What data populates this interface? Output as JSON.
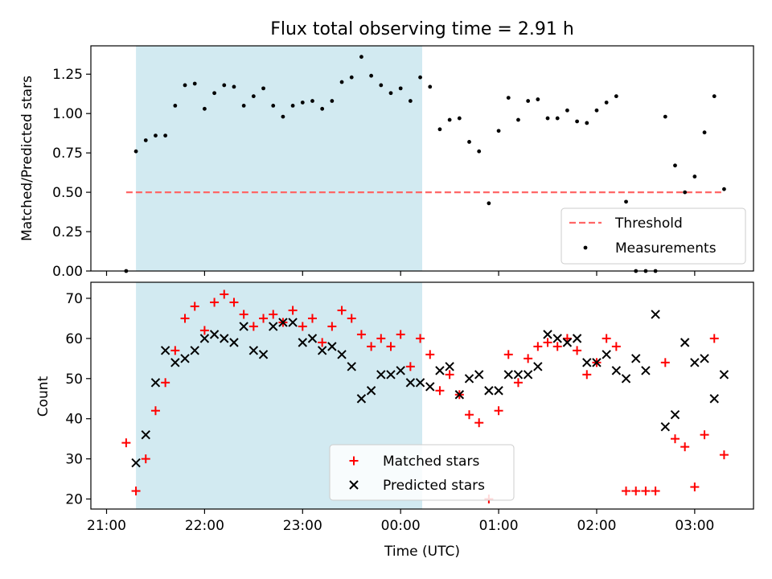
{
  "chart_data": [
    {
      "type": "scatter",
      "title": "Flux total observing time = 2.91 h",
      "xlabel": "",
      "ylabel": "Matched/Predicted stars",
      "xlim": [
        -0.08,
        3.3
      ],
      "ylim": [
        0,
        1.43
      ],
      "yticks": [
        0.0,
        0.25,
        0.5,
        0.75,
        1.0,
        1.25
      ],
      "ytick_labels": [
        "0.00",
        "0.25",
        "0.50",
        "0.75",
        "1.00",
        "1.25"
      ],
      "shaded_region": {
        "x": [
          0.15,
          1.61
        ],
        "color": "#add8e6"
      },
      "legend_position": "lower-right",
      "threshold": {
        "name": "Threshold",
        "value": 0.5,
        "x": [
          0.1,
          3.15
        ],
        "color": "#ff6666",
        "style": "dashed"
      },
      "series": [
        {
          "name": "Measurements",
          "marker": "dot",
          "color": "#000000",
          "x": [
            0.1,
            0.15,
            0.2,
            0.25,
            0.3,
            0.35,
            0.4,
            0.45,
            0.5,
            0.55,
            0.6,
            0.65,
            0.7,
            0.75,
            0.8,
            0.85,
            0.9,
            0.95,
            1.0,
            1.05,
            1.1,
            1.15,
            1.2,
            1.25,
            1.3,
            1.35,
            1.4,
            1.45,
            1.5,
            1.55,
            1.6,
            1.65,
            1.7,
            1.75,
            1.8,
            1.85,
            1.9,
            1.95,
            2.0,
            2.05,
            2.1,
            2.15,
            2.2,
            2.25,
            2.3,
            2.35,
            2.4,
            2.45,
            2.5,
            2.55,
            2.6,
            2.65,
            2.7,
            2.75,
            2.8,
            2.85,
            2.9,
            2.95,
            3.0,
            3.05,
            3.1,
            3.15
          ],
          "y": [
            0.0,
            0.76,
            0.83,
            0.86,
            0.86,
            1.05,
            1.18,
            1.19,
            1.03,
            1.13,
            1.18,
            1.17,
            1.05,
            1.11,
            1.16,
            1.05,
            0.98,
            1.05,
            1.07,
            1.08,
            1.03,
            1.08,
            1.2,
            1.23,
            1.36,
            1.24,
            1.18,
            1.13,
            1.16,
            1.08,
            1.23,
            1.17,
            0.9,
            0.96,
            0.97,
            0.82,
            0.76,
            0.43,
            0.89,
            1.1,
            0.96,
            1.08,
            1.09,
            0.97,
            0.97,
            1.02,
            0.95,
            0.94,
            1.02,
            1.07,
            1.11,
            0.44,
            0.0,
            0.0,
            0.0,
            0.98,
            0.67,
            0.5,
            0.6,
            0.88,
            1.11,
            0.52
          ]
        }
      ]
    },
    {
      "type": "scatter",
      "title": "",
      "xlabel": "Time (UTC)",
      "ylabel": "Count",
      "xlim": [
        -0.08,
        3.3
      ],
      "ylim": [
        17.5,
        74
      ],
      "yticks": [
        20,
        30,
        40,
        50,
        60,
        70
      ],
      "xticks": [
        0,
        0.5,
        1,
        1.5,
        2,
        2.5,
        3
      ],
      "xtick_labels": [
        "21:00",
        "22:00",
        "23:00",
        "00:00",
        "01:00",
        "02:00",
        "03:00"
      ],
      "shaded_region": {
        "x": [
          0.15,
          1.61
        ],
        "color": "#add8e6"
      },
      "legend_position": "lower-center",
      "series": [
        {
          "name": "Matched stars",
          "marker": "plus",
          "color": "#ff0000",
          "x": [
            0.1,
            0.15,
            0.2,
            0.25,
            0.3,
            0.35,
            0.4,
            0.45,
            0.5,
            0.55,
            0.6,
            0.65,
            0.7,
            0.75,
            0.8,
            0.85,
            0.9,
            0.95,
            1.0,
            1.05,
            1.1,
            1.15,
            1.2,
            1.25,
            1.3,
            1.35,
            1.4,
            1.45,
            1.5,
            1.55,
            1.6,
            1.65,
            1.7,
            1.75,
            1.8,
            1.85,
            1.9,
            1.95,
            2.0,
            2.05,
            2.1,
            2.15,
            2.2,
            2.25,
            2.3,
            2.35,
            2.4,
            2.45,
            2.5,
            2.55,
            2.6,
            2.65,
            2.7,
            2.75,
            2.8,
            2.85,
            2.9,
            2.95,
            3.0,
            3.05,
            3.1,
            3.15
          ],
          "y": [
            34,
            22,
            30,
            42,
            49,
            57,
            65,
            68,
            62,
            69,
            71,
            69,
            66,
            63,
            65,
            66,
            64,
            67,
            63,
            65,
            59,
            63,
            67,
            65,
            61,
            58,
            60,
            58,
            61,
            53,
            60,
            56,
            47,
            51,
            46,
            41,
            39,
            20,
            42,
            56,
            49,
            55,
            58,
            59,
            58,
            60,
            57,
            51,
            54,
            60,
            58,
            22,
            22,
            22,
            22,
            54,
            35,
            33,
            23,
            36,
            60,
            31
          ]
        },
        {
          "name": "Predicted stars",
          "marker": "x",
          "color": "#000000",
          "x": [
            0.15,
            0.2,
            0.25,
            0.3,
            0.35,
            0.4,
            0.45,
            0.5,
            0.55,
            0.6,
            0.65,
            0.7,
            0.75,
            0.8,
            0.85,
            0.9,
            0.95,
            1.0,
            1.05,
            1.1,
            1.15,
            1.2,
            1.25,
            1.3,
            1.35,
            1.4,
            1.45,
            1.5,
            1.55,
            1.6,
            1.65,
            1.7,
            1.75,
            1.8,
            1.85,
            1.9,
            1.95,
            2.0,
            2.05,
            2.1,
            2.15,
            2.2,
            2.25,
            2.3,
            2.35,
            2.4,
            2.45,
            2.5,
            2.55,
            2.6,
            2.65,
            2.7,
            2.75,
            2.8,
            2.85,
            2.9,
            2.95,
            3.0,
            3.05,
            3.1,
            3.15
          ],
          "y": [
            29,
            36,
            49,
            57,
            54,
            55,
            57,
            60,
            61,
            60,
            59,
            63,
            57,
            56,
            63,
            64,
            64,
            59,
            60,
            57,
            58,
            56,
            53,
            45,
            47,
            51,
            51,
            52,
            49,
            49,
            48,
            52,
            53,
            46,
            50,
            51,
            47,
            47,
            51,
            51,
            51,
            53,
            61,
            60,
            59,
            60,
            54,
            54,
            56,
            52,
            50,
            55,
            52,
            66,
            38,
            41,
            59,
            54,
            55,
            45,
            51
          ]
        }
      ]
    }
  ]
}
